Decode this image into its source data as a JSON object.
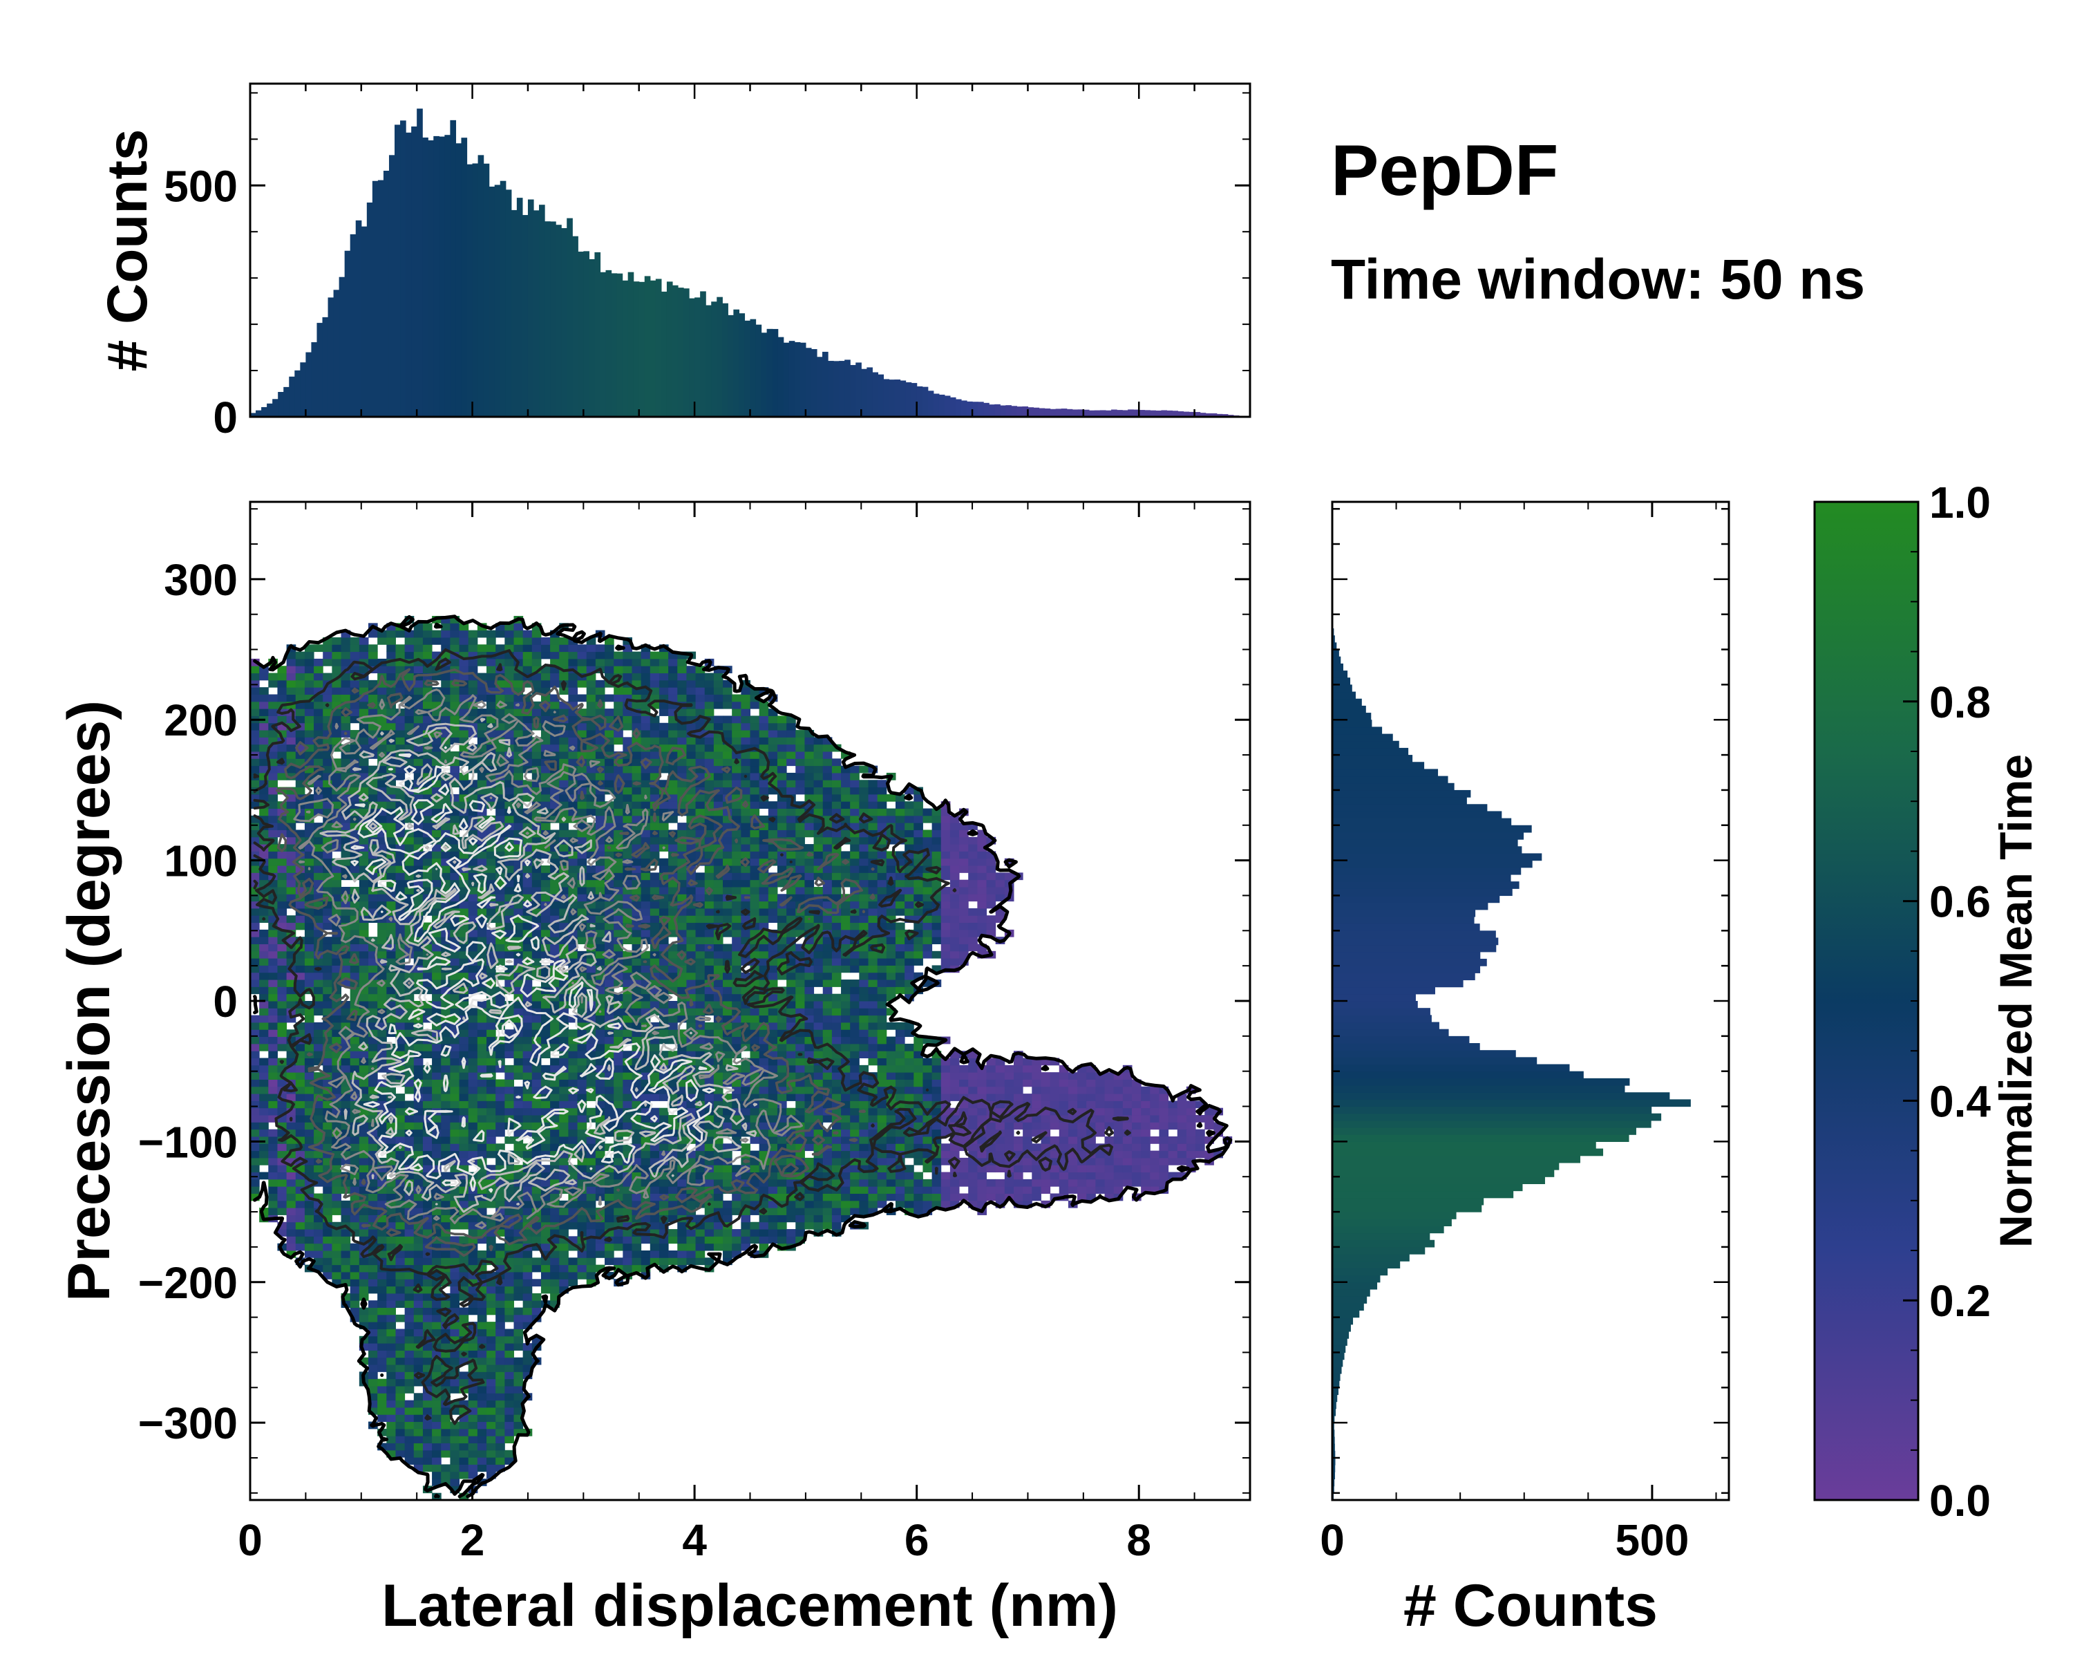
{
  "title": "PepDF",
  "subtitle": "Time window: 50 ns",
  "colors": {
    "low": "#6a3d9a",
    "mid": "#0b3b63",
    "high": "#238b22",
    "axis": "#000000"
  },
  "chart_data": [
    {
      "id": "top-histogram",
      "type": "bar",
      "ylabel": "# Counts",
      "xlim": [
        0,
        9
      ],
      "ylim": [
        0,
        720
      ],
      "y_ticks": [
        0,
        500
      ],
      "y_tick_labels": [
        "0",
        "500"
      ],
      "bin_width": 0.05,
      "profile_x": [
        0.0,
        0.2,
        0.5,
        0.8,
        1.1,
        1.3,
        1.5,
        1.7,
        1.9,
        2.1,
        2.3,
        2.6,
        2.9,
        3.2,
        3.5,
        3.8,
        4.0,
        4.3,
        4.6,
        4.9,
        5.2,
        5.5,
        5.8,
        6.1,
        6.4,
        6.8,
        7.2,
        7.6,
        8.0,
        8.4,
        8.8,
        9.0
      ],
      "profile_counts": [
        5,
        30,
        120,
        300,
        480,
        590,
        640,
        620,
        590,
        530,
        480,
        450,
        400,
        330,
        290,
        290,
        260,
        240,
        190,
        160,
        130,
        110,
        80,
        60,
        35,
        25,
        18,
        14,
        16,
        12,
        5,
        0
      ],
      "mean_time_x": [
        0,
        1.5,
        3,
        3.6,
        4.2,
        5,
        6,
        7,
        9
      ],
      "mean_time_values": [
        0.45,
        0.47,
        0.6,
        0.65,
        0.6,
        0.45,
        0.35,
        0.15,
        0.1
      ]
    },
    {
      "id": "right-histogram",
      "type": "bar",
      "orientation": "horizontal",
      "xlabel": "# Counts",
      "xlim": [
        0,
        620
      ],
      "ylim": [
        -355,
        355
      ],
      "x_ticks": [
        0,
        500
      ],
      "x_tick_labels": [
        "0",
        "500"
      ],
      "bin_width": 5,
      "profile_y": [
        -355,
        -330,
        -300,
        -260,
        -230,
        -200,
        -180,
        -150,
        -130,
        -110,
        -90,
        -75,
        -60,
        -45,
        -30,
        -15,
        0,
        15,
        30,
        45,
        60,
        80,
        100,
        120,
        140,
        160,
        180,
        200,
        220,
        240,
        255,
        270
      ],
      "profile_counts": [
        2,
        5,
        3,
        15,
        30,
        70,
        130,
        210,
        300,
        390,
        480,
        540,
        480,
        330,
        210,
        170,
        120,
        210,
        240,
        250,
        230,
        290,
        310,
        310,
        230,
        170,
        110,
        60,
        35,
        15,
        5,
        0
      ],
      "mean_time_y": [
        -355,
        -200,
        -150,
        -100,
        -70,
        -30,
        0,
        50,
        100,
        150,
        200,
        270
      ],
      "mean_time_values": [
        0.5,
        0.6,
        0.7,
        0.72,
        0.55,
        0.42,
        0.35,
        0.38,
        0.45,
        0.48,
        0.5,
        0.5
      ]
    },
    {
      "id": "main-heatmap",
      "type": "heatmap",
      "xlabel": "Lateral displacement (nm)",
      "ylabel": "Precession (degrees)",
      "xlim": [
        0,
        9
      ],
      "ylim": [
        -355,
        355
      ],
      "x_ticks": [
        0,
        2,
        4,
        6,
        8
      ],
      "x_tick_labels": [
        "0",
        "2",
        "4",
        "6",
        "8"
      ],
      "y_ticks": [
        300,
        200,
        100,
        0,
        -100,
        -200,
        -300
      ],
      "y_tick_labels": [
        "300",
        "200",
        "100",
        "0",
        "−100",
        "−200",
        "−300"
      ],
      "clusters": [
        {
          "x": 1.3,
          "y": 120,
          "sx": 0.9,
          "sy": 65,
          "w": 1.0
        },
        {
          "x": 1.7,
          "y": -80,
          "sx": 0.9,
          "sy": 70,
          "w": 1.2
        },
        {
          "x": 3.8,
          "y": -80,
          "sx": 1.1,
          "sy": 55,
          "w": 1.0
        },
        {
          "x": 2.8,
          "y": 60,
          "sx": 1.0,
          "sy": 80,
          "w": 0.7
        },
        {
          "x": 5.5,
          "y": 80,
          "sx": 0.9,
          "sy": 45,
          "w": 0.5
        },
        {
          "x": 7.0,
          "y": -95,
          "sx": 1.2,
          "sy": 35,
          "w": 0.45
        },
        {
          "x": 1.8,
          "y": -280,
          "sx": 0.5,
          "sy": 50,
          "w": 0.4
        },
        {
          "x": 2.2,
          "y": 210,
          "sx": 1.3,
          "sy": 35,
          "w": 0.4
        },
        {
          "x": 4.1,
          "y": 150,
          "sx": 0.8,
          "sy": 40,
          "w": 0.35
        }
      ]
    },
    {
      "id": "colorbar",
      "type": "colorbar",
      "label": "Normalized Mean Time",
      "range": [
        0,
        1
      ],
      "ticks": [
        0.0,
        0.2,
        0.4,
        0.6,
        0.8,
        1.0
      ],
      "tick_labels": [
        "0.0",
        "0.2",
        "0.4",
        "0.6",
        "0.8",
        "1.0"
      ],
      "stops": [
        {
          "value": 0.0,
          "color": "#6a3d9a"
        },
        {
          "value": 0.25,
          "color": "#2e3f8f"
        },
        {
          "value": 0.5,
          "color": "#0b3b63"
        },
        {
          "value": 0.75,
          "color": "#1a6a4a"
        },
        {
          "value": 1.0,
          "color": "#238b22"
        }
      ]
    }
  ]
}
